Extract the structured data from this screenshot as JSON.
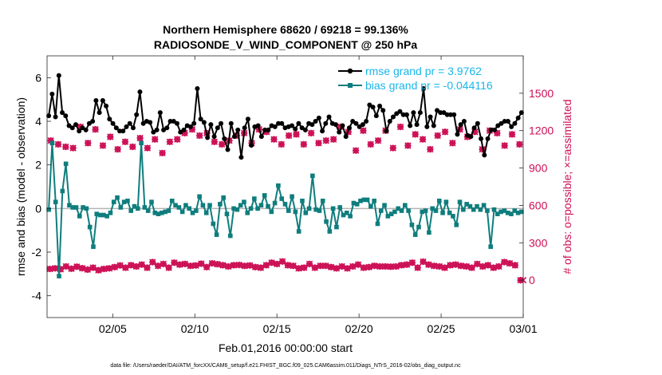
{
  "chart_data": {
    "type": "line",
    "title_line1": "Northern Hemisphere 68620 / 69218 = 99.136%",
    "title_line2": "RADIOSONDE_V_WIND_COMPONENT @ 250 hPa",
    "xlabel": "Feb.01,2016 00:00:00 start",
    "ylabel_left": "rmse and bias (model - observation)",
    "ylabel_right": "# of obs: o=possible; ×=assimilated",
    "footnote": "data file: /Users/raeder/DAI/ATM_forcXX/CAM6_setup/f.e21.FHIST_BGC.f09_025.CAM6assim.011/Diags_NTrS_2016-02/obs_diag_output.nc",
    "x_range": [
      1.0,
      30.0
    ],
    "x_ticks": [
      {
        "value": 5,
        "label": "02/05"
      },
      {
        "value": 10,
        "label": "02/10"
      },
      {
        "value": 15,
        "label": "02/15"
      },
      {
        "value": 20,
        "label": "02/20"
      },
      {
        "value": 25,
        "label": "02/25"
      },
      {
        "value": 30,
        "label": "03/01"
      }
    ],
    "ylim_left": [
      -5,
      7
    ],
    "yticks_left": [
      {
        "value": -4,
        "label": "-4"
      },
      {
        "value": -2,
        "label": "-2"
      },
      {
        "value": 0,
        "label": "0"
      },
      {
        "value": 2,
        "label": "2"
      },
      {
        "value": 4,
        "label": "4"
      },
      {
        "value": 6,
        "label": "6"
      }
    ],
    "ylim_right": [
      -300,
      1800
    ],
    "yticks_right": [
      {
        "value": 0,
        "label": "0"
      },
      {
        "value": 300,
        "label": "300"
      },
      {
        "value": 600,
        "label": "600"
      },
      {
        "value": 900,
        "label": "900"
      },
      {
        "value": 1200,
        "label": "1200"
      },
      {
        "value": 1500,
        "label": "1500"
      }
    ],
    "legend": [
      {
        "name": "rmse grand pr = 3.9762",
        "color": "#000000"
      },
      {
        "name": "bias grand pr = -0.044116",
        "color": "#0f7d7d"
      }
    ],
    "legend_position": "top-right",
    "colors": {
      "rmse": "#000000",
      "bias": "#0f7d7d",
      "obs": "#cc0f55",
      "zero": "#b4b4b4",
      "legend_text": "#19b6ea"
    },
    "rmse": [
      4.25,
      5.25,
      4.2,
      6.1,
      4.4,
      4.25,
      3.8,
      3.7,
      3.85,
      3.55,
      3.7,
      3.6,
      3.9,
      4.0,
      4.95,
      4.4,
      4.95,
      4.7,
      4.1,
      3.9,
      3.7,
      3.55,
      3.55,
      3.75,
      3.9,
      3.7,
      4.3,
      5.35,
      3.9,
      4.0,
      3.95,
      3.5,
      3.6,
      4.4,
      3.6,
      3.7,
      4.0,
      4.0,
      3.9,
      3.5,
      3.6,
      3.8,
      3.75,
      3.9,
      5.5,
      4.1,
      3.95,
      3.25,
      3.85,
      3.3,
      3.7,
      3.9,
      3.2,
      2.7,
      3.9,
      3.3,
      3.6,
      2.35,
      3.7,
      4.1,
      2.9,
      3.75,
      3.8,
      3.3,
      3.6,
      3.6,
      3.8,
      3.75,
      3.9,
      3.9,
      3.7,
      3.75,
      3.8,
      3.65,
      3.9,
      3.7,
      3.6,
      3.9,
      3.85,
      4.0,
      4.15,
      3.55,
      3.9,
      4.2,
      3.9,
      3.85,
      3.5,
      3.8,
      3.3,
      3.7,
      4.0,
      3.9,
      3.75,
      3.85,
      4.0,
      4.75,
      4.65,
      4.25,
      4.7,
      4.5,
      3.55,
      4.0,
      4.2,
      4.35,
      4.45,
      4.3,
      4.3,
      3.8,
      4.4,
      3.85,
      4.4,
      5.5,
      3.75,
      4.2,
      3.8,
      4.5,
      4.4,
      4.4,
      4.3,
      4.3,
      4.3,
      3.4,
      3.85,
      4.0,
      3.35,
      3.3,
      3.7,
      3.9,
      3.2,
      2.45,
      3.2,
      3.6,
      3.6,
      3.8,
      3.9,
      4.0,
      4.0,
      3.75,
      3.9,
      4.15,
      4.4
    ],
    "bias": [
      -0.05,
      3.0,
      0.3,
      -3.1,
      0.8,
      2.05,
      0.15,
      0.05,
      0.05,
      -0.35,
      0.05,
      0.0,
      -0.85,
      -1.75,
      -0.25,
      -0.3,
      -0.3,
      -0.35,
      -0.2,
      0.3,
      0.5,
      0.05,
      0.3,
      0.35,
      -0.1,
      0.1,
      0.0,
      3.0,
      0.05,
      -0.1,
      0.3,
      -0.2,
      -0.25,
      -0.2,
      -0.15,
      -0.1,
      0.35,
      0.15,
      0.05,
      -0.15,
      0.15,
      0.0,
      -0.2,
      -0.1,
      0.55,
      0.15,
      -0.2,
      0.15,
      -0.7,
      -1.2,
      0.2,
      0.5,
      -0.25,
      -1.25,
      0.0,
      -0.05,
      0.15,
      0.3,
      -0.2,
      0.0,
      0.45,
      0.0,
      0.15,
      0.6,
      0.1,
      -0.15,
      0.25,
      1.05,
      0.45,
      0.2,
      -0.1,
      0.55,
      -0.15,
      -1.05,
      0.35,
      -0.2,
      0.0,
      1.5,
      -0.05,
      -0.1,
      0.35,
      -0.6,
      -1.05,
      0.0,
      -0.85,
      0.05,
      -0.3,
      -0.2,
      -0.35,
      0.25,
      0.2,
      0.35,
      0.4,
      0.4,
      0.1,
      0.35,
      -0.7,
      -0.1,
      0.15,
      -0.35,
      -0.25,
      -0.15,
      0.0,
      -0.1,
      0.15,
      -0.1,
      -0.75,
      -1.2,
      -0.85,
      -0.15,
      -0.1,
      -1.1,
      0.0,
      -0.1,
      0.35,
      -0.2,
      0.3,
      -0.2,
      -0.35,
      -0.75,
      0.3,
      -0.05,
      0.2,
      0.1,
      -0.05,
      0.1,
      -0.05,
      0.15,
      -0.1,
      -1.75,
      -0.05,
      -0.25,
      -0.15,
      -0.1,
      -0.2,
      -0.25,
      -0.1,
      -0.2,
      -0.15
    ],
    "obs_possible": [
      1120,
      1090,
      1070,
      1060,
      1230,
      1100,
      1210,
      1080,
      1150,
      1050,
      1110,
      1070,
      1140,
      1060,
      1130,
      1020,
      1110,
      1130,
      1180,
      1210,
      1160,
      1180,
      1110,
      1090,
      1120,
      1160,
      1180,
      1100,
      1210,
      1190,
      1130,
      1090,
      1160,
      1170,
      1090,
      1180,
      1100,
      1120,
      1130,
      1230,
      1190,
      1040,
      1200,
      1090,
      1120,
      1200,
      1060,
      1230,
      1080,
      1170,
      1130,
      1050,
      1160,
      1190,
      1100,
      1210,
      1150,
      1190,
      1050,
      1200,
      1180,
      1080,
      1170,
      1090
    ],
    "obs_assimilated": [
      1120,
      1090,
      1070,
      1060,
      1230,
      1100,
      1210,
      1080,
      1150,
      1050,
      1110,
      1070,
      1140,
      1060,
      1130,
      1020,
      1110,
      1130,
      1180,
      1210,
      1160,
      1180,
      1110,
      1090,
      1120,
      1160,
      1180,
      1100,
      1210,
      1190,
      1130,
      1090,
      1160,
      1170,
      1090,
      1180,
      1100,
      1120,
      1130,
      1230,
      1190,
      1040,
      1200,
      1090,
      1120,
      1200,
      1060,
      1230,
      1080,
      1170,
      1130,
      1050,
      1160,
      1190,
      1100,
      1210,
      1150,
      1190,
      1050,
      1200,
      1180,
      1080,
      1170,
      1090
    ],
    "obs_low": [
      90,
      95,
      88,
      110,
      92,
      108,
      96,
      85,
      100,
      80,
      90,
      95,
      105,
      118,
      100,
      120,
      110,
      125,
      100,
      145,
      115,
      130,
      100,
      140,
      125,
      130,
      115,
      118,
      132,
      105,
      135,
      128,
      120,
      110,
      120,
      122,
      115,
      118,
      105,
      100,
      120,
      140,
      130,
      150,
      120,
      115,
      95,
      100,
      130,
      100,
      115,
      115,
      105,
      95,
      110,
      95,
      110,
      125,
      100,
      105,
      115,
      110,
      110,
      108,
      110,
      120,
      125,
      140,
      100,
      148,
      125,
      115,
      110,
      100,
      120,
      125,
      115,
      110,
      100,
      130,
      110,
      120,
      100,
      110,
      145,
      135,
      120,
      0
    ]
  }
}
